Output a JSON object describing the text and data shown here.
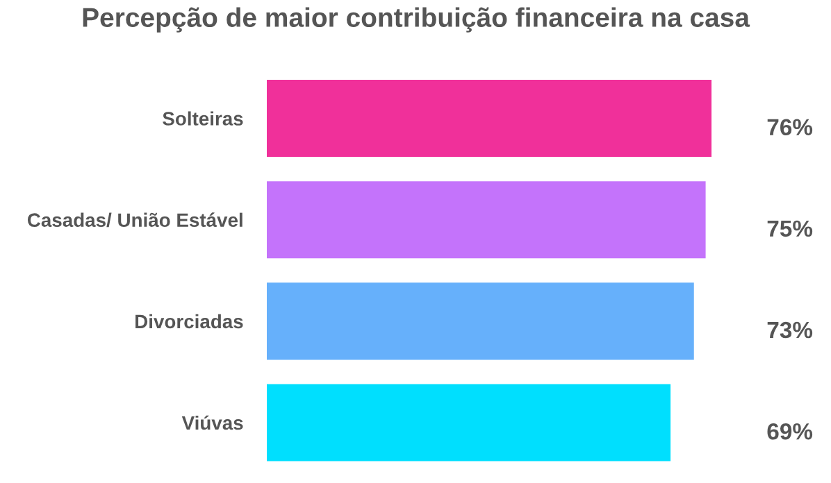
{
  "chart_data": {
    "type": "bar",
    "orientation": "horizontal",
    "title": "Percepção de maior contribuição financeira na casa",
    "categories": [
      "Solteiras",
      "Casadas/ União Estável",
      "Divorciadas",
      "Viúvas"
    ],
    "values": [
      76,
      75,
      73,
      69
    ],
    "colors": [
      "#f0309a",
      "#c473fb",
      "#66b0fb",
      "#00dffe"
    ],
    "value_labels": [
      "76%",
      "75%",
      "73%",
      "69%"
    ],
    "tick_labels": "y",
    "grid": false,
    "legend": false
  }
}
